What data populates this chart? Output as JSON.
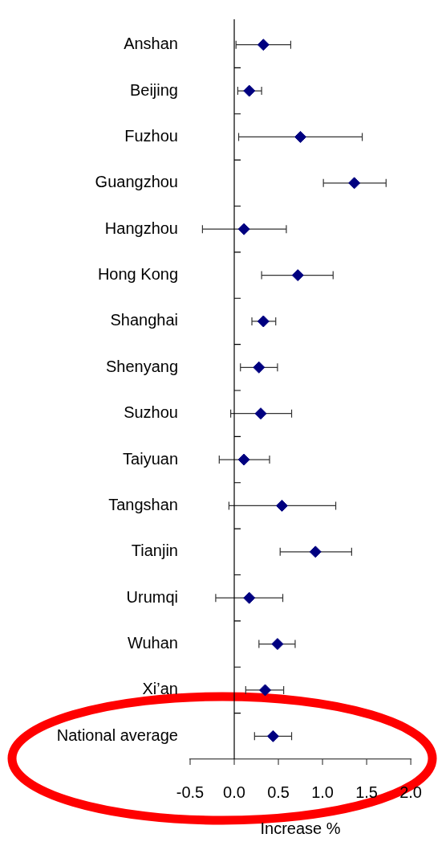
{
  "chart_data": {
    "type": "scatter",
    "orientation": "horizontal",
    "marker": "diamond",
    "grid": false,
    "legend": false,
    "categories": [
      "Anshan",
      "Beijing",
      "Fuzhou",
      "Guangzhou",
      "Hangzhou",
      "Hong Kong",
      "Shanghai",
      "Shenyang",
      "Suzhou",
      "Taiyuan",
      "Tangshan",
      "Tianjin",
      "Urumqi",
      "Wuhan",
      "Xi’an",
      "National average"
    ],
    "series": [
      {
        "color": "#000080",
        "values": [
          0.33,
          0.17,
          0.75,
          1.36,
          0.11,
          0.72,
          0.33,
          0.28,
          0.3,
          0.11,
          0.54,
          0.92,
          0.17,
          0.49,
          0.35,
          0.44
        ],
        "errors": [
          [
            0.02,
            0.64
          ],
          [
            0.04,
            0.31
          ],
          [
            0.05,
            1.45
          ],
          [
            1.01,
            1.72
          ],
          [
            -0.36,
            0.59
          ],
          [
            0.31,
            1.12
          ],
          [
            0.2,
            0.47
          ],
          [
            0.07,
            0.49
          ],
          [
            -0.04,
            0.65
          ],
          [
            -0.17,
            0.4
          ],
          [
            -0.06,
            1.15
          ],
          [
            0.52,
            1.33
          ],
          [
            -0.21,
            0.55
          ],
          [
            0.28,
            0.69
          ],
          [
            0.13,
            0.56
          ],
          [
            0.23,
            0.65
          ]
        ]
      }
    ],
    "xlim": [
      -0.5,
      2.0
    ],
    "xticks": [
      {
        "value": -0.5,
        "label": "-0.5"
      },
      {
        "value": 0,
        "label": "0.0"
      },
      {
        "value": 0.5,
        "label": "0.5"
      },
      {
        "value": 1,
        "label": "1.0"
      },
      {
        "value": 1.5,
        "label": "1.5"
      },
      {
        "value": 2,
        "label": "2.0"
      }
    ],
    "xlabel": "Increase %",
    "ref_lines": [
      {
        "axis": "x",
        "value": 0,
        "color": "#000000"
      }
    ]
  }
}
